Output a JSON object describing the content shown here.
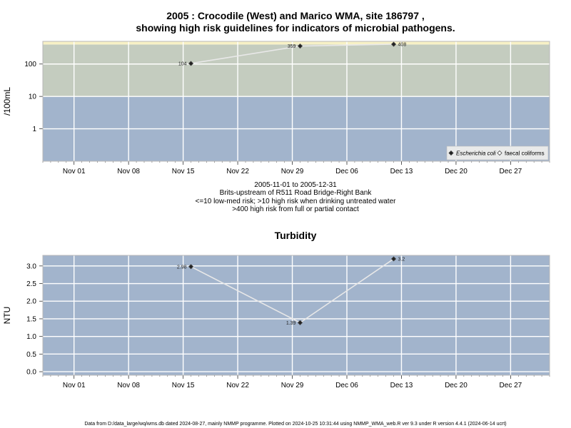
{
  "chart_data": [
    {
      "type": "line",
      "title_line1": "2005 : Crocodile (West) and Marico WMA, site 186797 ,",
      "title_line2": "showing high risk guidelines for indicators of microbial pathogens.",
      "ylabel": "/100mL",
      "yscale": "log",
      "ylim": [
        0.1,
        500
      ],
      "yticks": [
        {
          "value": 1,
          "label": "1"
        },
        {
          "value": 10,
          "label": "10"
        },
        {
          "value": 100,
          "label": "100"
        }
      ],
      "xlim": [
        "2005-10-28",
        "2006-01-01"
      ],
      "xticks": [
        {
          "date": "2005-11-01",
          "label": "Nov 01"
        },
        {
          "date": "2005-11-08",
          "label": "Nov 08"
        },
        {
          "date": "2005-11-15",
          "label": "Nov 15"
        },
        {
          "date": "2005-11-22",
          "label": "Nov 22"
        },
        {
          "date": "2005-11-29",
          "label": "Nov 29"
        },
        {
          "date": "2005-12-06",
          "label": "Dec 06"
        },
        {
          "date": "2005-12-13",
          "label": "Dec 13"
        },
        {
          "date": "2005-12-20",
          "label": "Dec 20"
        },
        {
          "date": "2005-12-27",
          "label": "Dec 27"
        }
      ],
      "bands": [
        {
          "from": 0.1,
          "to": 10,
          "color": "#a2b4cc"
        },
        {
          "from": 10,
          "to": 400,
          "color": "#c4ccbf"
        },
        {
          "from": 400,
          "to": 500,
          "color": "#f7f1c6"
        }
      ],
      "series": [
        {
          "name": "Escherichia coli",
          "marker": "filled-diamond",
          "points": [
            {
              "date": "2005-11-16",
              "value": 104,
              "label": "104"
            },
            {
              "date": "2005-11-30",
              "value": 359,
              "label": "359"
            },
            {
              "date": "2005-12-12",
              "value": 408,
              "label": "408"
            }
          ]
        }
      ],
      "legend": {
        "placement": "bottom-right",
        "entries": [
          {
            "label": "Escherichia coli",
            "marker": "filled-diamond",
            "italic": true
          },
          {
            "label": "faecal coliforms",
            "marker": "open-diamond",
            "italic": false
          }
        ]
      },
      "subtitle_lines": [
        "2005-11-01 to 2005-12-31",
        "Brits-upstream of R511 Road Bridge-Right Bank",
        "<=10 low-med risk; >10 high risk when drinking untreated water",
        ">400 high risk from full or partial contact"
      ]
    },
    {
      "type": "line",
      "title": "Turbidity",
      "ylabel": "NTU",
      "ylim": [
        -0.1,
        3.3
      ],
      "yticks": [
        {
          "value": 0,
          "label": "0.0"
        },
        {
          "value": 0.5,
          "label": "0.5"
        },
        {
          "value": 1,
          "label": "1.0"
        },
        {
          "value": 1.5,
          "label": "1.5"
        },
        {
          "value": 2,
          "label": "2.0"
        },
        {
          "value": 2.5,
          "label": "2.5"
        },
        {
          "value": 3,
          "label": "3.0"
        }
      ],
      "xlim": [
        "2005-10-28",
        "2006-01-01"
      ],
      "xticks": [
        {
          "date": "2005-11-01",
          "label": "Nov 01"
        },
        {
          "date": "2005-11-08",
          "label": "Nov 08"
        },
        {
          "date": "2005-11-15",
          "label": "Nov 15"
        },
        {
          "date": "2005-11-22",
          "label": "Nov 22"
        },
        {
          "date": "2005-11-29",
          "label": "Nov 29"
        },
        {
          "date": "2005-12-06",
          "label": "Dec 06"
        },
        {
          "date": "2005-12-13",
          "label": "Dec 13"
        },
        {
          "date": "2005-12-20",
          "label": "Dec 20"
        },
        {
          "date": "2005-12-27",
          "label": "Dec 27"
        }
      ],
      "background_color": "#a2b4cc",
      "series": [
        {
          "marker": "filled-diamond",
          "points": [
            {
              "date": "2005-11-16",
              "value": 2.98,
              "label": "2.98"
            },
            {
              "date": "2005-11-30",
              "value": 1.39,
              "label": "1.39"
            },
            {
              "date": "2005-12-12",
              "value": 3.2,
              "label": "3.2"
            }
          ]
        }
      ]
    }
  ],
  "footer": "Data from D:/data_large/wq/wms.db dated 2024-08-27, mainly NMMP programme. Plotted on 2024-10-25 10:31:44 using NMMP_WMA_web.R ver 9.3 under R version 4.4.1 (2024-06-14 ucrt)"
}
